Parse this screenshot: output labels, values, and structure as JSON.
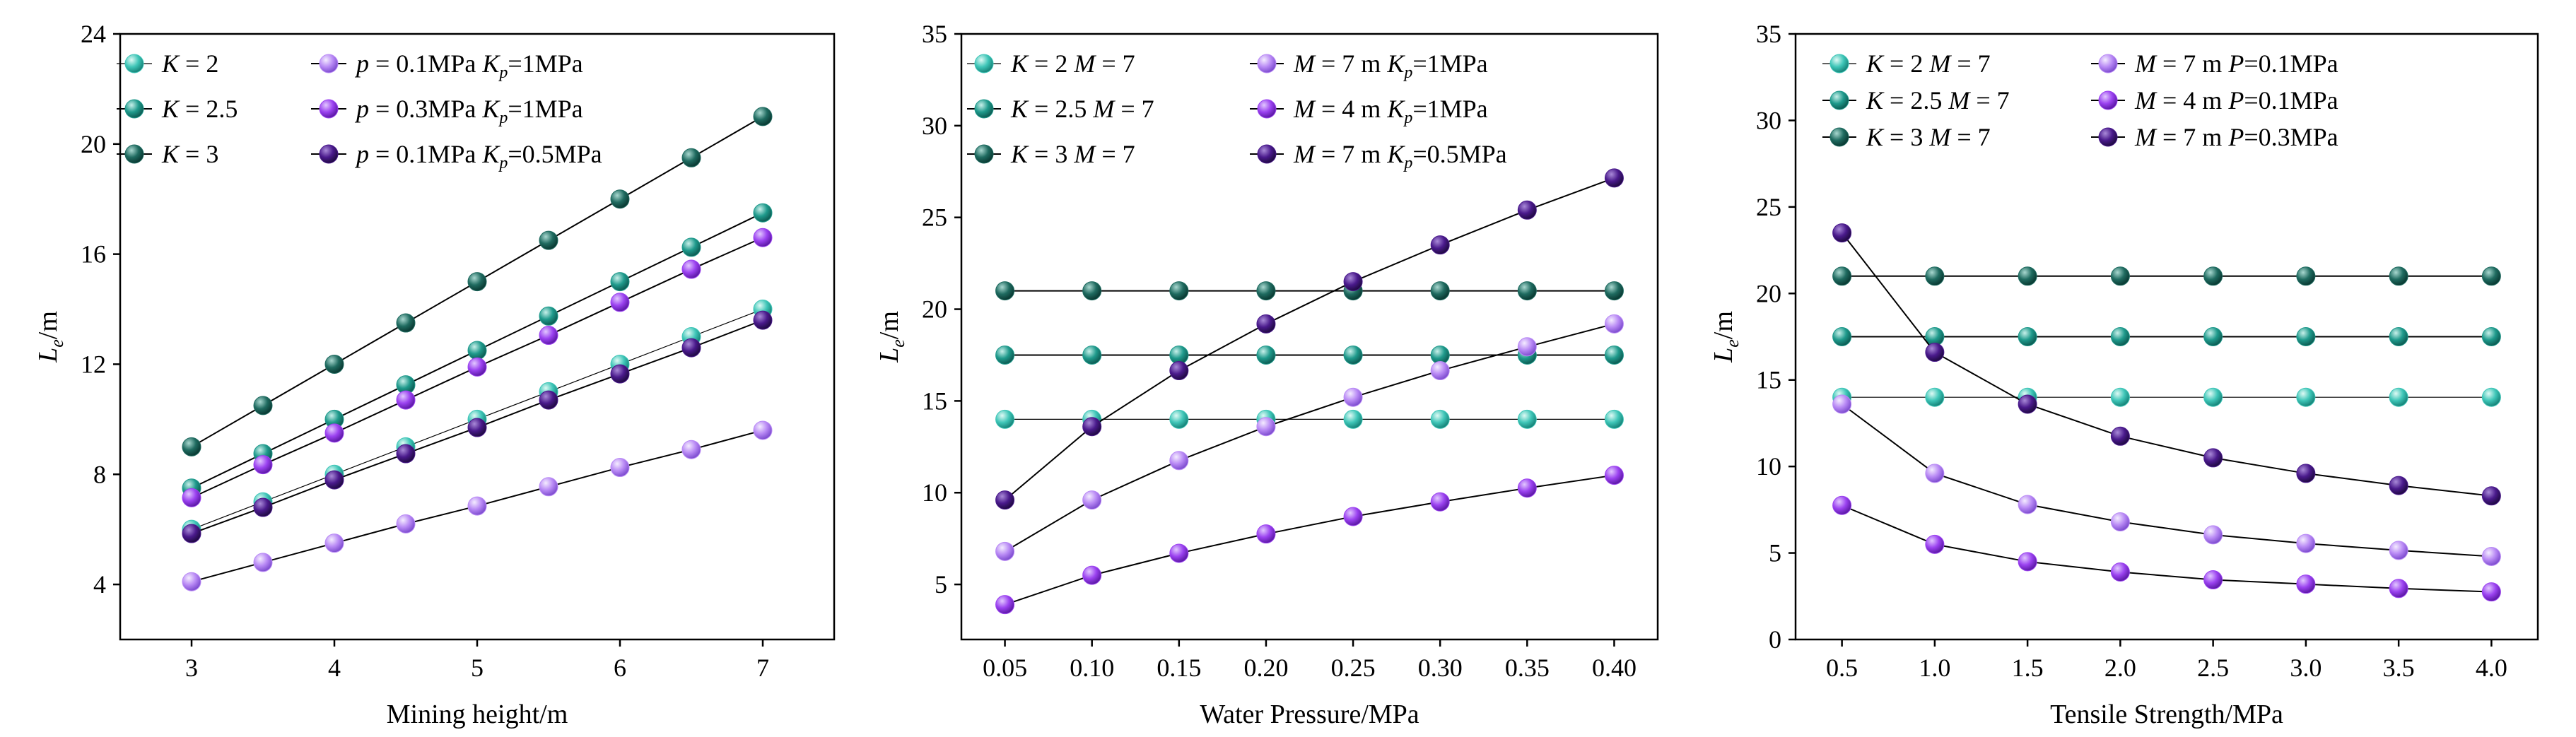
{
  "colors": {
    "k2": "#3fc6b8",
    "k25": "#1f9a8c",
    "k3": "#1f6b60",
    "p_light": "#b98af5",
    "p_mid": "#9b42f0",
    "p_dark": "#4a1a8c"
  },
  "chart_data": [
    {
      "type": "line",
      "xlabel": "Mining height/m",
      "ylabel_main": "L",
      "ylabel_sub": "e",
      "ylabel_unit": "/m",
      "xlim": [
        2.5,
        7.5
      ],
      "ylim": [
        2,
        24
      ],
      "xticks": [
        3,
        4,
        5,
        6,
        7
      ],
      "xtick_labels": [
        "3",
        "4",
        "5",
        "6",
        "7"
      ],
      "yticks": [
        4,
        8,
        12,
        16,
        20,
        24
      ],
      "ytick_labels": [
        "4",
        "8",
        "12",
        "16",
        "20",
        "24"
      ],
      "legend_position": "top-left",
      "x": [
        3,
        3.5,
        4,
        4.5,
        5,
        5.5,
        6,
        6.5,
        7
      ],
      "series": [
        {
          "name": "K = 2",
          "color_key": "k2",
          "lw": 1.2,
          "values": [
            6,
            7,
            8,
            9,
            10,
            11,
            12,
            13,
            14
          ]
        },
        {
          "name": "K = 2.5",
          "color_key": "k25",
          "lw": 2,
          "values": [
            7.5,
            8.75,
            10,
            11.25,
            12.5,
            13.75,
            15,
            16.25,
            17.5
          ]
        },
        {
          "name": "K = 3",
          "color_key": "k3",
          "lw": 2,
          "values": [
            9,
            10.5,
            12,
            13.5,
            15,
            16.5,
            18,
            19.5,
            21
          ]
        },
        {
          "name": "p = 0.1MPa  Kp=1MPa",
          "color_key": "p_light",
          "lw": 2,
          "values": [
            4.1,
            4.8,
            5.5,
            6.2,
            6.85,
            7.55,
            8.25,
            8.9,
            9.6
          ]
        },
        {
          "name": "p = 0.3MPa  Kp=1MPa",
          "color_key": "p_mid",
          "lw": 2,
          "values": [
            7.15,
            8.35,
            9.5,
            10.7,
            11.9,
            13.05,
            14.25,
            15.45,
            16.6
          ]
        },
        {
          "name": "p = 0.1MPa  Kp=0.5MPa",
          "color_key": "p_dark",
          "lw": 2,
          "values": [
            5.85,
            6.8,
            7.8,
            8.75,
            9.7,
            10.7,
            11.65,
            12.6,
            13.6
          ]
        }
      ],
      "legend": {
        "col1": [
          {
            "main": "K",
            "rest": " = 2",
            "series": 0
          },
          {
            "main": "K",
            "rest": " = 2.5",
            "series": 1
          },
          {
            "main": "K",
            "rest": " = 3",
            "series": 2
          }
        ],
        "col2": [
          {
            "a_it": "p",
            "a": " = 0.1MPa ",
            "b_it": "K",
            "b_sub": "p",
            "b": "=1MPa",
            "series": 3
          },
          {
            "a_it": "p",
            "a": " = 0.3MPa ",
            "b_it": "K",
            "b_sub": "p",
            "b": "=1MPa",
            "series": 4
          },
          {
            "a_it": "p",
            "a": " = 0.1MPa ",
            "b_it": "K",
            "b_sub": "p",
            "b": "=0.5MPa",
            "series": 5
          }
        ]
      }
    },
    {
      "type": "line",
      "xlabel": "Water Pressure/MPa",
      "ylabel_main": "L",
      "ylabel_sub": "e",
      "ylabel_unit": "/m",
      "xlim": [
        0.025,
        0.425
      ],
      "ylim": [
        2,
        35
      ],
      "xticks": [
        0.05,
        0.1,
        0.15,
        0.2,
        0.25,
        0.3,
        0.35,
        0.4
      ],
      "xtick_labels": [
        "0.05",
        "0.10",
        "0.15",
        "0.20",
        "0.25",
        "0.30",
        "0.35",
        "0.40"
      ],
      "yticks": [
        5,
        10,
        15,
        20,
        25,
        30,
        35
      ],
      "ytick_labels": [
        "5",
        "10",
        "15",
        "20",
        "25",
        "30",
        "35"
      ],
      "legend_position": "top-left",
      "x": [
        0.05,
        0.1,
        0.15,
        0.2,
        0.25,
        0.3,
        0.35,
        0.4
      ],
      "series": [
        {
          "name": "K = 2 M = 7",
          "color_key": "k2",
          "lw": 1.2,
          "values": [
            14,
            14,
            14,
            14,
            14,
            14,
            14,
            14
          ]
        },
        {
          "name": "K = 2.5 M = 7",
          "color_key": "k25",
          "lw": 2,
          "values": [
            17.5,
            17.5,
            17.5,
            17.5,
            17.5,
            17.5,
            17.5,
            17.5
          ]
        },
        {
          "name": "K = 3 M = 7",
          "color_key": "k3",
          "lw": 2,
          "values": [
            21,
            21,
            21,
            21,
            21,
            21,
            21,
            21
          ]
        },
        {
          "name": "M = 7 m  Kp=1MPa",
          "color_key": "p_light",
          "lw": 2,
          "values": [
            6.8,
            9.6,
            11.75,
            13.6,
            15.2,
            16.65,
            17.95,
            19.2
          ]
        },
        {
          "name": "M = 4 m  Kp=1MPa",
          "color_key": "p_mid",
          "lw": 2,
          "values": [
            3.9,
            5.5,
            6.7,
            7.75,
            8.7,
            9.5,
            10.25,
            10.95
          ]
        },
        {
          "name": "M = 7 m  Kp=0.5MPa",
          "color_key": "p_dark",
          "lw": 2,
          "values": [
            9.6,
            13.6,
            16.65,
            19.2,
            21.5,
            23.5,
            25.4,
            27.15
          ]
        }
      ],
      "legend": {
        "col1": [
          {
            "main": "K",
            "rest": " = 2 ",
            "main2": "M",
            "rest2": " = 7",
            "series": 0
          },
          {
            "main": "K",
            "rest": " = 2.5 ",
            "main2": "M",
            "rest2": " = 7",
            "series": 1
          },
          {
            "main": "K",
            "rest": " = 3 ",
            "main2": "M",
            "rest2": " = 7",
            "series": 2
          }
        ],
        "col2": [
          {
            "a_it": "M",
            "a": " = 7 m  ",
            "b_it": "K",
            "b_sub": "p",
            "b": "=1MPa",
            "series": 3
          },
          {
            "a_it": "M",
            "a": " = 4 m  ",
            "b_it": "K",
            "b_sub": "p",
            "b": "=1MPa",
            "series": 4
          },
          {
            "a_it": "M",
            "a": " = 7 m  ",
            "b_it": "K",
            "b_sub": "p",
            "b": "=0.5MPa",
            "series": 5
          }
        ]
      }
    },
    {
      "type": "line",
      "xlabel": "Tensile Strength/MPa",
      "ylabel_main": "L",
      "ylabel_sub": "e",
      "ylabel_unit": "/m",
      "xlim": [
        0.25,
        4.25
      ],
      "ylim": [
        0,
        35
      ],
      "xticks": [
        0.5,
        1,
        1.5,
        2,
        2.5,
        3,
        3.5,
        4
      ],
      "xtick_labels": [
        "0.5",
        "1.0",
        "1.5",
        "2.0",
        "2.5",
        "3.0",
        "3.5",
        "4.0"
      ],
      "yticks": [
        0,
        5,
        10,
        15,
        20,
        25,
        30,
        35
      ],
      "ytick_labels": [
        "0",
        "5",
        "10",
        "15",
        "20",
        "25",
        "30",
        "35"
      ],
      "legend_position": "top-left",
      "x": [
        0.5,
        1,
        1.5,
        2,
        2.5,
        3,
        3.5,
        4
      ],
      "series": [
        {
          "name": "K = 2 M = 7",
          "color_key": "k2",
          "lw": 1.2,
          "values": [
            14,
            14,
            14,
            14,
            14,
            14,
            14,
            14
          ]
        },
        {
          "name": "K = 2.5 M = 7",
          "color_key": "k25",
          "lw": 2,
          "values": [
            17.5,
            17.5,
            17.5,
            17.5,
            17.5,
            17.5,
            17.5,
            17.5
          ]
        },
        {
          "name": "K = 3 M = 7",
          "color_key": "k3",
          "lw": 2,
          "values": [
            21,
            21,
            21,
            21,
            21,
            21,
            21,
            21
          ]
        },
        {
          "name": "M = 7 m  P=0.1MPa",
          "color_key": "p_light",
          "lw": 2,
          "values": [
            13.6,
            9.6,
            7.8,
            6.8,
            6.05,
            5.55,
            5.15,
            4.8
          ]
        },
        {
          "name": "M = 4 m  P=0.1MPa",
          "color_key": "p_mid",
          "lw": 2,
          "values": [
            7.75,
            5.5,
            4.5,
            3.9,
            3.45,
            3.2,
            2.95,
            2.75
          ]
        },
        {
          "name": "M = 7 m  P=0.3MPa",
          "color_key": "p_dark",
          "lw": 2,
          "values": [
            23.5,
            16.6,
            13.6,
            11.75,
            10.5,
            9.6,
            8.9,
            8.3
          ]
        }
      ],
      "legend": {
        "col1": [
          {
            "main": "K",
            "rest": " = 2 ",
            "main2": "M",
            "rest2": " = 7",
            "series": 0
          },
          {
            "main": "K",
            "rest": " = 2.5 ",
            "main2": "M",
            "rest2": " = 7",
            "series": 1
          },
          {
            "main": "K",
            "rest": " = 3 ",
            "main2": "M",
            "rest2": " = 7",
            "series": 2
          }
        ],
        "col2": [
          {
            "a_it": "M",
            "a": " = 7 m  ",
            "b_it": "P",
            "b_sub": "",
            "b": "=0.1MPa",
            "series": 3
          },
          {
            "a_it": "M",
            "a": " = 4 m  ",
            "b_it": "P",
            "b_sub": "",
            "b": "=0.1MPa",
            "series": 4
          },
          {
            "a_it": "M",
            "a": " = 7 m  ",
            "b_it": "P",
            "b_sub": "",
            "b": "=0.3MPa",
            "series": 5
          }
        ]
      }
    }
  ]
}
